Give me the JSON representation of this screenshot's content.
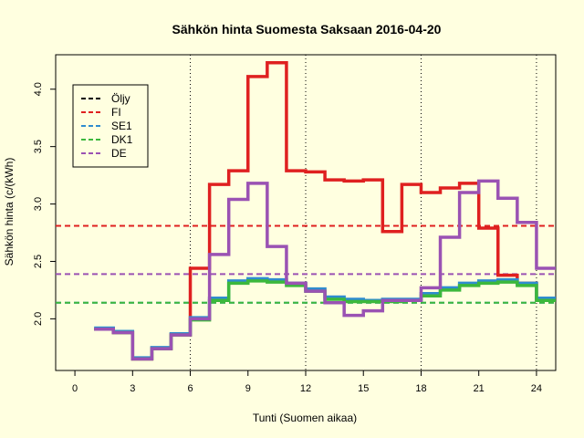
{
  "chart_data": {
    "type": "line",
    "title": "Sähkön hinta Suomesta Saksaan 2016-04-20",
    "xlabel": "Tunti (Suomen aikaa)",
    "ylabel": "Sähkön hinta (c/(kWh)",
    "xlim": [
      -1,
      25
    ],
    "ylim": [
      1.55,
      4.3
    ],
    "xticks": [
      0,
      3,
      6,
      9,
      12,
      15,
      18,
      21,
      24
    ],
    "yticks": [
      2.0,
      2.5,
      3.0,
      3.5,
      4.0
    ],
    "ytick_labels": [
      "2.0",
      "2.5",
      "3.0",
      "3.5",
      "4.0"
    ],
    "vlines": [
      6,
      12,
      18,
      24
    ],
    "legend_position": "top-left",
    "series": [
      {
        "name": "Öljy",
        "color": "#000000",
        "style": "dashed",
        "values": []
      },
      {
        "name": "FI",
        "color": "#DF2020",
        "style": "step",
        "x": [
          1,
          2,
          3,
          4,
          5,
          6,
          7,
          8,
          9,
          10,
          11,
          12,
          13,
          14,
          15,
          16,
          17,
          18,
          19,
          20,
          21,
          22,
          23,
          24
        ],
        "values": [
          1.91,
          1.88,
          1.65,
          1.74,
          1.86,
          2.44,
          3.17,
          3.29,
          4.11,
          4.23,
          3.29,
          3.28,
          3.21,
          3.2,
          3.21,
          2.76,
          3.17,
          3.1,
          3.14,
          3.18,
          2.79,
          2.38,
          2.31,
          2.17
        ],
        "mean": 2.81
      },
      {
        "name": "SE1",
        "color": "#2F8CCF",
        "style": "step",
        "x": [
          1,
          2,
          3,
          4,
          5,
          6,
          7,
          8,
          9,
          10,
          11,
          12,
          13,
          14,
          15,
          16,
          17,
          18,
          19,
          20,
          21,
          22,
          23,
          24
        ],
        "values": [
          1.92,
          1.89,
          1.66,
          1.75,
          1.87,
          2.01,
          2.18,
          2.33,
          2.35,
          2.34,
          2.31,
          2.26,
          2.19,
          2.17,
          2.16,
          2.17,
          2.17,
          2.22,
          2.27,
          2.31,
          2.33,
          2.34,
          2.31,
          2.18
        ],
        "mean": 2.14
      },
      {
        "name": "DK1",
        "color": "#3CB83C",
        "style": "step",
        "x": [
          1,
          2,
          3,
          4,
          5,
          6,
          7,
          8,
          9,
          10,
          11,
          12,
          13,
          14,
          15,
          16,
          17,
          18,
          19,
          20,
          21,
          22,
          23,
          24
        ],
        "values": [
          1.91,
          1.88,
          1.65,
          1.74,
          1.86,
          1.99,
          2.16,
          2.31,
          2.33,
          2.32,
          2.29,
          2.24,
          2.17,
          2.15,
          2.15,
          2.15,
          2.16,
          2.2,
          2.25,
          2.29,
          2.31,
          2.32,
          2.29,
          2.16
        ],
        "mean": 2.14
      },
      {
        "name": "DE",
        "color": "#9A52B3",
        "style": "step",
        "x": [
          1,
          2,
          3,
          4,
          5,
          6,
          7,
          8,
          9,
          10,
          11,
          12,
          13,
          14,
          15,
          16,
          17,
          18,
          19,
          20,
          21,
          22,
          23,
          24
        ],
        "values": [
          1.91,
          1.88,
          1.65,
          1.74,
          1.86,
          2.0,
          2.56,
          3.04,
          3.18,
          2.63,
          2.31,
          2.24,
          2.14,
          2.03,
          2.07,
          2.16,
          2.16,
          2.27,
          2.71,
          3.1,
          3.2,
          3.05,
          2.84,
          2.44
        ],
        "mean": 2.39
      }
    ]
  }
}
